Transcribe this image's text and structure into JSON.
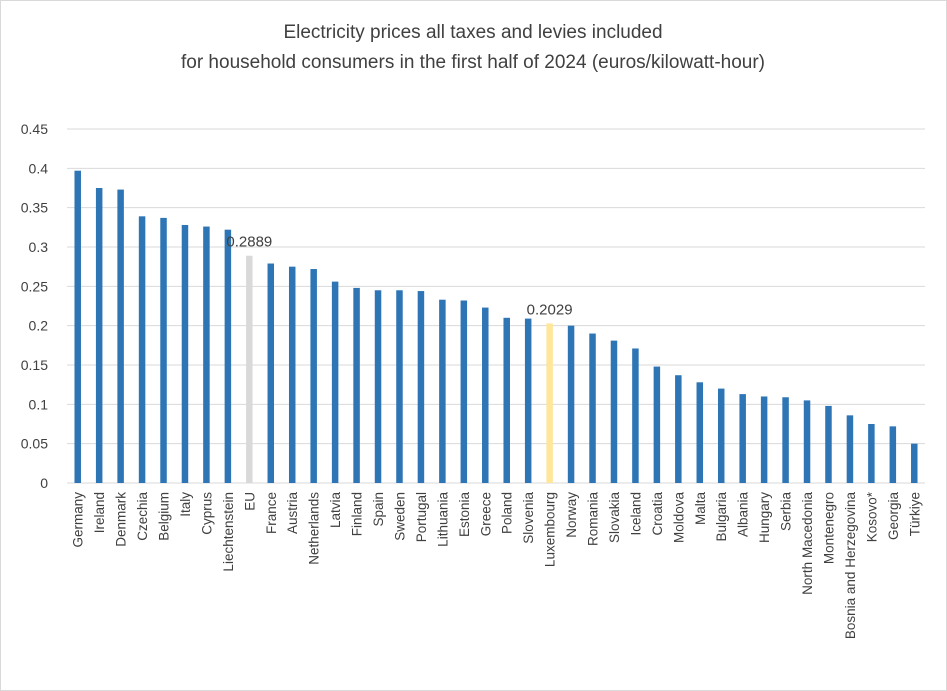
{
  "chart_data": {
    "type": "bar",
    "title": "Electricity prices all taxes and levies included",
    "subtitle": "for household consumers in the first half of 2024 (euros/kilowatt-hour)",
    "xlabel": "",
    "ylabel": "",
    "ylim": [
      0,
      0.45
    ],
    "yticks": [
      "0",
      "0.05",
      "0.1",
      "0.15",
      "0.2",
      "0.25",
      "0.3",
      "0.35",
      "0.4",
      "0.45"
    ],
    "grid": true,
    "categories": [
      "Germany",
      "Ireland",
      "Denmark",
      "Czechia",
      "Belgium",
      "Italy",
      "Cyprus",
      "Liechtenstein",
      "EU",
      "France",
      "Austria",
      "Netherlands",
      "Latvia",
      "Finland",
      "Spain",
      "Sweden",
      "Portugal",
      "Lithuania",
      "Estonia",
      "Greece",
      "Poland",
      "Slovenia",
      "Luxembourg",
      "Norway",
      "Romania",
      "Slovakia",
      "Iceland",
      "Croatia",
      "Moldova",
      "Malta",
      "Bulgaria",
      "Albania",
      "Hungary",
      "Serbia",
      "North Macedonia",
      "Montenegro",
      "Bosnia and Herzegovina",
      "Kosovo*",
      "Georgia",
      "Türkiye"
    ],
    "values": [
      0.397,
      0.375,
      0.373,
      0.339,
      0.337,
      0.328,
      0.326,
      0.322,
      0.2889,
      0.279,
      0.275,
      0.272,
      0.256,
      0.248,
      0.245,
      0.245,
      0.244,
      0.233,
      0.232,
      0.223,
      0.21,
      0.209,
      0.2029,
      0.2,
      0.19,
      0.181,
      0.171,
      0.148,
      0.137,
      0.128,
      0.12,
      0.113,
      0.11,
      0.109,
      0.105,
      0.098,
      0.086,
      0.075,
      0.072,
      0.05
    ],
    "colors": {
      "default": "#2e75b6",
      "EU": "#d9d9d9",
      "Luxembourg": "#ffe699"
    },
    "data_labels": [
      {
        "category": "EU",
        "text": "0.2889"
      },
      {
        "category": "Luxembourg",
        "text": "0.2029"
      }
    ]
  }
}
